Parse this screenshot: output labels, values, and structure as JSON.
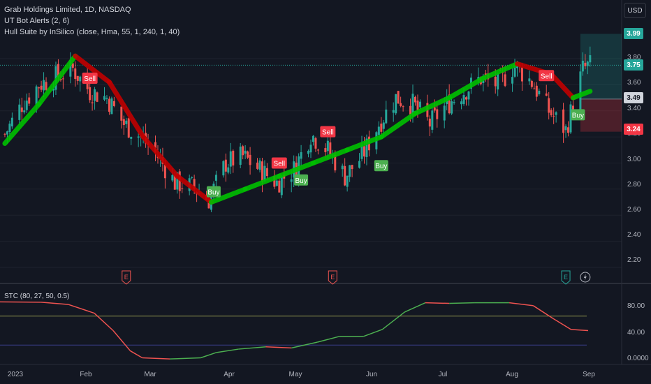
{
  "header": {
    "symbol_line": "Grab Holdings Limited, 1D, NASDAQ",
    "indicator_1": "UT Bot Alerts (2, 6)",
    "indicator_2": "Hull Suite by InSilico (close, Hma, 55, 1, 240, 1, 40)"
  },
  "currency_button": "USD",
  "price_axis": {
    "ticks": [
      "3.80",
      "3.60",
      "3.40",
      "3.20",
      "3.00",
      "2.80",
      "2.60",
      "2.40",
      "2.20"
    ],
    "tag_target": "3.99",
    "tag_last": "3.75",
    "tag_entry": "3.49",
    "tag_stop": "3.24"
  },
  "stc_panel": {
    "legend": "STC (80, 27, 50, 0.5)",
    "ticks": [
      "80.00",
      "40.00",
      "0.0000"
    ]
  },
  "time_axis": {
    "labels": [
      "2023",
      "Feb",
      "Mar",
      "Apr",
      "May",
      "Jun",
      "Jul",
      "Aug",
      "Sep"
    ]
  },
  "signals": {
    "sell": "Sell",
    "buy": "Buy"
  },
  "event_markers": {
    "earnings_letter": "E"
  },
  "colors": {
    "background": "#131722",
    "up": "#26a69a",
    "down": "#ef5350",
    "hull_up": "#00c000",
    "hull_down": "#c00000",
    "sell_badge": "#f23645",
    "buy_badge": "#4caf50",
    "stc_line": "#ef5350",
    "stc_upper": "#8a8f4a",
    "stc_lower": "#3a3f8a"
  },
  "chart_data": {
    "type": "candlestick",
    "title": "Grab Holdings Limited, 1D, NASDAQ",
    "ylim": [
      2.1,
      4.05
    ],
    "x_range": [
      "2023-01-01",
      "2023-09-14"
    ],
    "price_series": [
      [
        "2023-01-03",
        3.22
      ],
      [
        "2023-01-10",
        3.45
      ],
      [
        "2023-01-17",
        3.6
      ],
      [
        "2023-01-24",
        3.66
      ],
      [
        "2023-01-31",
        3.72
      ],
      [
        "2023-02-07",
        3.55
      ],
      [
        "2023-02-14",
        3.5
      ],
      [
        "2023-02-21",
        3.3
      ],
      [
        "2023-02-28",
        3.2
      ],
      [
        "2023-03-07",
        3.05
      ],
      [
        "2023-03-14",
        2.85
      ],
      [
        "2023-03-21",
        2.82
      ],
      [
        "2023-03-28",
        2.72
      ],
      [
        "2023-04-04",
        3.0
      ],
      [
        "2023-04-11",
        3.05
      ],
      [
        "2023-04-18",
        2.95
      ],
      [
        "2023-04-25",
        2.85
      ],
      [
        "2023-05-02",
        2.95
      ],
      [
        "2023-05-09",
        3.22
      ],
      [
        "2023-05-16",
        3.1
      ],
      [
        "2023-05-23",
        2.9
      ],
      [
        "2023-05-30",
        3.05
      ],
      [
        "2023-06-06",
        3.3
      ],
      [
        "2023-06-13",
        3.5
      ],
      [
        "2023-06-20",
        3.45
      ],
      [
        "2023-06-27",
        3.3
      ],
      [
        "2023-07-04",
        3.45
      ],
      [
        "2023-07-11",
        3.55
      ],
      [
        "2023-07-18",
        3.65
      ],
      [
        "2023-07-25",
        3.6
      ],
      [
        "2023-08-01",
        3.75
      ],
      [
        "2023-08-08",
        3.62
      ],
      [
        "2023-08-15",
        3.4
      ],
      [
        "2023-08-22",
        3.25
      ],
      [
        "2023-08-29",
        3.72
      ],
      [
        "2023-09-01",
        3.75
      ]
    ],
    "hull_series": [
      [
        "2023-01-03",
        3.15
      ],
      [
        "2023-01-17",
        3.45
      ],
      [
        "2023-02-01",
        3.82
      ],
      [
        "2023-02-15",
        3.62
      ],
      [
        "2023-03-01",
        3.2
      ],
      [
        "2023-03-15",
        2.9
      ],
      [
        "2023-03-29",
        2.7
      ],
      [
        "2023-04-12",
        2.8
      ],
      [
        "2023-04-26",
        2.9
      ],
      [
        "2023-05-10",
        3.0
      ],
      [
        "2023-05-24",
        3.1
      ],
      [
        "2023-06-07",
        3.2
      ],
      [
        "2023-06-21",
        3.38
      ],
      [
        "2023-07-05",
        3.5
      ],
      [
        "2023-07-19",
        3.65
      ],
      [
        "2023-08-02",
        3.76
      ],
      [
        "2023-08-16",
        3.68
      ],
      [
        "2023-08-25",
        3.5
      ],
      [
        "2023-09-01",
        3.55
      ]
    ],
    "signals": [
      {
        "date": "2023-02-07",
        "type": "Sell",
        "price": 3.65
      },
      {
        "date": "2023-03-30",
        "type": "Buy",
        "price": 2.78
      },
      {
        "date": "2023-04-26",
        "type": "Sell",
        "price": 3.0
      },
      {
        "date": "2023-05-05",
        "type": "Buy",
        "price": 2.87
      },
      {
        "date": "2023-05-16",
        "type": "Sell",
        "price": 3.24
      },
      {
        "date": "2023-06-07",
        "type": "Buy",
        "price": 2.98
      },
      {
        "date": "2023-08-14",
        "type": "Sell",
        "price": 3.67
      },
      {
        "date": "2023-08-27",
        "type": "Buy",
        "price": 3.37
      }
    ],
    "position": {
      "target": 3.99,
      "last": 3.75,
      "entry": 3.49,
      "stop": 3.24
    },
    "stc": {
      "ylim": [
        0,
        100
      ],
      "levels": [
        75,
        25
      ],
      "series": [
        [
          "2023-01-01",
          99.5
        ],
        [
          "2023-01-25",
          99.0
        ],
        [
          "2023-02-10",
          95
        ],
        [
          "2023-02-25",
          80
        ],
        [
          "2023-03-08",
          50
        ],
        [
          "2023-03-18",
          15
        ],
        [
          "2023-03-25",
          3
        ],
        [
          "2023-04-10",
          1
        ],
        [
          "2023-04-28",
          3
        ],
        [
          "2023-05-07",
          12
        ],
        [
          "2023-05-20",
          18
        ],
        [
          "2023-06-05",
          22
        ],
        [
          "2023-06-20",
          20
        ],
        [
          "2023-07-05",
          30
        ],
        [
          "2023-07-18",
          40
        ],
        [
          "2023-08-01",
          40
        ],
        [
          "2023-08-12",
          52
        ],
        [
          "2023-08-25",
          82
        ],
        [
          "2023-09-06",
          98
        ],
        [
          "2023-09-20",
          97
        ],
        [
          "2023-10-05",
          98
        ],
        [
          "2023-10-25",
          98
        ],
        [
          "2023-11-08",
          93
        ],
        [
          "2023-11-20",
          70
        ],
        [
          "2023-11-30",
          52
        ],
        [
          "2023-12-10",
          50
        ]
      ]
    }
  }
}
